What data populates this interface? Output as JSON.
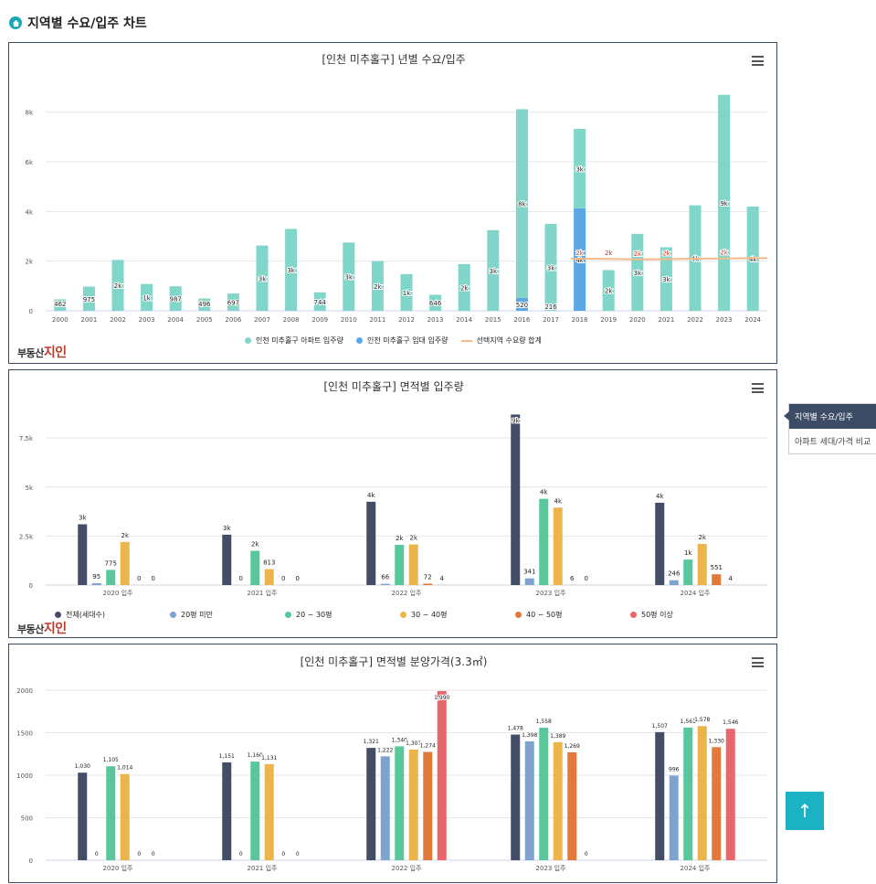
{
  "page_title": "지역별 수요/입주 차트",
  "side_panel": {
    "active": "지역별 수요/입주",
    "item": "아파트 세대/가격 비교"
  },
  "top_button": "↑",
  "logo": {
    "small": "부동산",
    "big": "지인"
  },
  "colors": {
    "teal": "#7fd6c9",
    "blue": "#5aa7e6",
    "orange_line": "#f5b98a",
    "navy": "#444d66",
    "lightblue": "#7fa3d1",
    "green": "#58c89c",
    "yellow": "#ecb54c",
    "orange": "#e2793a",
    "red": "#e9666b"
  },
  "chart_data": [
    {
      "type": "bar",
      "title": "[인천 미추홀구] 년별 수요/입주",
      "categories": [
        "2000",
        "2001",
        "2002",
        "2003",
        "2004",
        "2005",
        "2006",
        "2007",
        "2008",
        "2009",
        "2010",
        "2011",
        "2012",
        "2013",
        "2014",
        "2015",
        "2016",
        "2017",
        "2018",
        "2019",
        "2020",
        "2021",
        "2022",
        "2023",
        "2024"
      ],
      "ylim": [
        0,
        8800
      ],
      "yticks": [
        0,
        2000,
        4000,
        6000,
        8000
      ],
      "ytick_labels": [
        "0",
        "2k",
        "4k",
        "6k",
        "8k"
      ],
      "series": [
        {
          "name": "인천 미추홀구 아파트 입주량",
          "color": "#7fd6c9",
          "values": [
            462,
            975,
            2050,
            1080,
            987,
            496,
            697,
            2630,
            3300,
            744,
            2750,
            2000,
            1480,
            646,
            1880,
            3250,
            7600,
            3500,
            3200,
            1640,
            3100,
            2560,
            4250,
            8700,
            4200
          ],
          "labels": [
            "462",
            "975",
            "2k",
            "1k",
            "987",
            "496",
            "697",
            "3k",
            "3k",
            "744",
            "3k",
            "2k",
            "1k",
            "646",
            "2k",
            "3k",
            "8k",
            "3k",
            "3k",
            "2k",
            "3k",
            "3k",
            "4k",
            "9k",
            "4k"
          ]
        },
        {
          "name": "인천 미추홀구 임대 입주량",
          "color": "#5aa7e6",
          "values": [
            0,
            0,
            0,
            0,
            0,
            0,
            0,
            0,
            0,
            0,
            0,
            0,
            0,
            0,
            0,
            0,
            520,
            0,
            4130,
            0,
            0,
            0,
            0,
            0,
            0
          ],
          "labels": [
            "",
            "",
            "",
            "",
            "",
            "",
            "",
            "",
            "",
            "",
            "",
            "",
            "",
            "",
            "",
            "",
            "520",
            "",
            "4k",
            "",
            "",
            "",
            "",
            "",
            ""
          ]
        },
        {
          "name": "선택지역 수요량 합계",
          "color": "#f5b98a",
          "type": "line",
          "values": [
            null,
            null,
            null,
            null,
            null,
            null,
            null,
            null,
            null,
            null,
            null,
            null,
            null,
            null,
            null,
            null,
            null,
            null,
            2100,
            2090,
            2070,
            2080,
            2100,
            2110,
            2120
          ],
          "labels": [
            "",
            "",
            "",
            "",
            "",
            "",
            "",
            "",
            "",
            "",
            "",
            "",
            "",
            "",
            "",
            "",
            "",
            "",
            "2k",
            "2k",
            "2k",
            "2k",
            "",
            "2k",
            ""
          ]
        }
      ],
      "extra_labels": {
        "2017_teal_low": "216"
      }
    },
    {
      "type": "bar",
      "title": "[인천 미추홀구] 면적별 입주량",
      "categories": [
        "2020 입주",
        "2021 입주",
        "2022 입주",
        "2023 입주",
        "2024 입주"
      ],
      "ylim": [
        0,
        9000
      ],
      "yticks": [
        0,
        2500,
        5000,
        7500
      ],
      "ytick_labels": [
        "0",
        "2.5k",
        "5k",
        "7.5k"
      ],
      "series": [
        {
          "name": "전체(세대수)",
          "color": "#444d66",
          "values": [
            3100,
            2570,
            4250,
            8700,
            4200
          ],
          "labels": [
            "3k",
            "3k",
            "4k",
            "9k",
            "4k"
          ]
        },
        {
          "name": "20평 미만",
          "color": "#7fa3d1",
          "values": [
            95,
            0,
            66,
            341,
            246
          ],
          "labels": [
            "95",
            "0",
            "66",
            "341",
            "246"
          ]
        },
        {
          "name": "20 ~ 30평",
          "color": "#58c89c",
          "values": [
            775,
            1750,
            2050,
            4400,
            1300
          ],
          "labels": [
            "775",
            "2k",
            "2k",
            "4k",
            "1k"
          ]
        },
        {
          "name": "30 ~ 40평",
          "color": "#ecb54c",
          "values": [
            2200,
            813,
            2070,
            3950,
            2100
          ],
          "labels": [
            "2k",
            "813",
            "2k",
            "4k",
            "2k"
          ]
        },
        {
          "name": "40 ~ 50평",
          "color": "#e2793a",
          "values": [
            0,
            0,
            72,
            6,
            551
          ],
          "labels": [
            "0",
            "0",
            "72",
            "6",
            "551"
          ]
        },
        {
          "name": "50평 이상",
          "color": "#e9666b",
          "values": [
            0,
            0,
            4,
            0,
            4
          ],
          "labels": [
            "0",
            "0",
            "4",
            "0",
            "4"
          ]
        }
      ]
    },
    {
      "type": "bar",
      "title": "[인천 미추홀구] 면적별 분양가격(3.3㎡)",
      "categories": [
        "2020 입주",
        "2021 입주",
        "2022 입주",
        "2023 입주",
        "2024 입주"
      ],
      "ylim": [
        0,
        2000
      ],
      "yticks": [
        0,
        500,
        1000,
        1500,
        2000
      ],
      "ytick_labels": [
        "0",
        "500",
        "1000",
        "1500",
        "2000"
      ],
      "series": [
        {
          "name": "전체(세대수)",
          "color": "#444d66",
          "values": [
            1030,
            1151,
            1321,
            1478,
            1507
          ],
          "labels": [
            "1,030",
            "1,151",
            "1,321",
            "1,478",
            "1,507"
          ]
        },
        {
          "name": "20평 미만",
          "color": "#7fa3d1",
          "values": [
            0,
            0,
            1222,
            1398,
            996
          ],
          "labels": [
            "0",
            "0",
            "1,222",
            "1,398",
            "996"
          ]
        },
        {
          "name": "20 ~ 30평",
          "color": "#58c89c",
          "values": [
            1105,
            1160,
            1340,
            1558,
            1561
          ],
          "labels": [
            "1,105",
            "1,160",
            "1,340",
            "1,558",
            "1,561"
          ]
        },
        {
          "name": "30 ~ 40평",
          "color": "#ecb54c",
          "values": [
            1014,
            1131,
            1301,
            1389,
            1578
          ],
          "labels": [
            "1,014",
            "1,131",
            "1,301",
            "1,389",
            "1,578"
          ]
        },
        {
          "name": "40 ~ 50평",
          "color": "#e2793a",
          "values": [
            0,
            0,
            1274,
            1269,
            1330
          ],
          "labels": [
            "0",
            "0",
            "1,274",
            "1,269",
            "1,330"
          ]
        },
        {
          "name": "50평 이상",
          "color": "#e9666b",
          "values": [
            0,
            0,
            1990,
            0,
            1546
          ],
          "labels": [
            "0",
            "0",
            "1,990",
            "0",
            "1,546"
          ]
        }
      ]
    }
  ]
}
